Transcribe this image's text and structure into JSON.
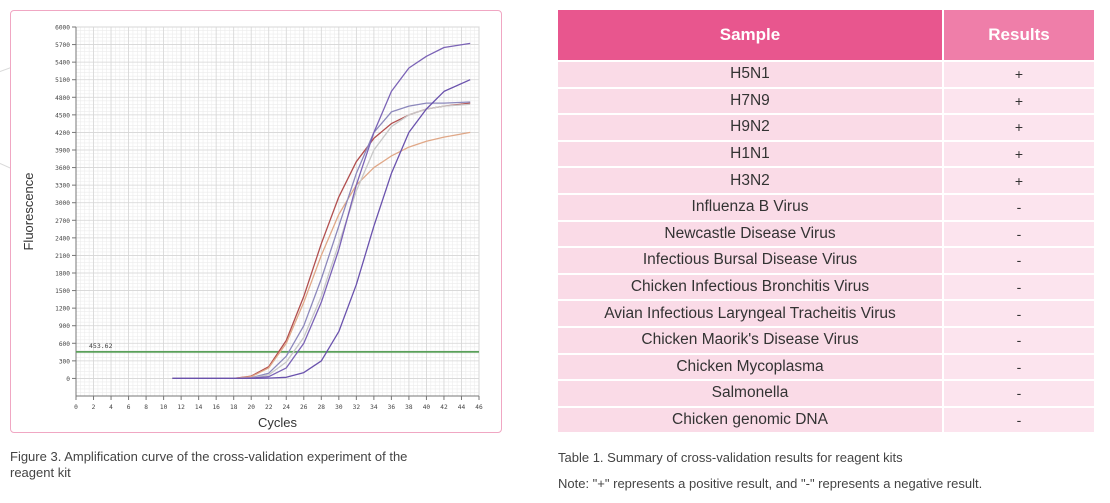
{
  "figure": {
    "caption": "Figure 3. Amplification curve of the cross-validation experiment of the reagent kit"
  },
  "chart_data": {
    "type": "line",
    "title": "",
    "xlabel": "Cycles",
    "ylabel": "Fluorescence",
    "xlim": [
      0,
      46
    ],
    "ylim": [
      -300,
      6000
    ],
    "x_ticks": [
      0,
      2,
      4,
      6,
      8,
      10,
      12,
      14,
      16,
      18,
      20,
      22,
      24,
      26,
      28,
      30,
      32,
      34,
      36,
      38,
      40,
      42,
      44,
      46
    ],
    "y_ticks": [
      0,
      300,
      600,
      900,
      1200,
      1500,
      1800,
      2100,
      2400,
      2700,
      3000,
      3300,
      3600,
      3900,
      4200,
      4500,
      4800,
      5100,
      5400,
      5700,
      6000
    ],
    "y_tick_labels": [
      "0",
      "300",
      "600",
      "900",
      "1200",
      "1500",
      "1800",
      "2100",
      "2400",
      "2700",
      "3000",
      "3300",
      "3600",
      "3900",
      "4200",
      "4500",
      "4800",
      "5100",
      "5400",
      "5700",
      "6000"
    ],
    "grid": true,
    "threshold": {
      "value": 453.62,
      "label": "453.62",
      "color": "#5aa05a"
    },
    "series": [
      {
        "color": "#b14e4e",
        "x": [
          18,
          20,
          22,
          24,
          26,
          28,
          30,
          32,
          34,
          36,
          38,
          40,
          42,
          45
        ],
        "values": [
          0,
          40,
          200,
          650,
          1400,
          2300,
          3100,
          3700,
          4100,
          4350,
          4500,
          4600,
          4650,
          4700
        ]
      },
      {
        "color": "#e0a888",
        "x": [
          18,
          20,
          22,
          24,
          26,
          28,
          30,
          32,
          34,
          36,
          38,
          40,
          42,
          45
        ],
        "values": [
          0,
          30,
          180,
          600,
          1300,
          2100,
          2800,
          3300,
          3600,
          3800,
          3950,
          4050,
          4120,
          4200
        ]
      },
      {
        "color": "#8c88bc",
        "x": [
          18,
          20,
          22,
          24,
          26,
          28,
          30,
          32,
          34,
          36,
          38,
          40,
          42,
          45
        ],
        "values": [
          0,
          10,
          90,
          380,
          900,
          1700,
          2600,
          3500,
          4200,
          4550,
          4650,
          4700,
          4700,
          4720
        ]
      },
      {
        "color": "#c8c8c8",
        "x": [
          18,
          20,
          22,
          24,
          26,
          28,
          30,
          32,
          34,
          36,
          38,
          40,
          42,
          45
        ],
        "values": [
          0,
          5,
          60,
          280,
          700,
          1400,
          2300,
          3200,
          3900,
          4300,
          4500,
          4600,
          4650,
          4680
        ]
      },
      {
        "color": "#7b63b6",
        "x": [
          18,
          20,
          22,
          24,
          26,
          28,
          30,
          32,
          34,
          36,
          38,
          40,
          42,
          45
        ],
        "values": [
          0,
          5,
          30,
          180,
          600,
          1300,
          2200,
          3300,
          4200,
          4900,
          5300,
          5500,
          5650,
          5720
        ]
      },
      {
        "color": "#6a52ad",
        "x": [
          18,
          20,
          22,
          24,
          26,
          28,
          30,
          32,
          34,
          36,
          38,
          40,
          42,
          45
        ],
        "values": [
          0,
          0,
          5,
          20,
          100,
          300,
          800,
          1600,
          2600,
          3500,
          4200,
          4600,
          4900,
          5100
        ]
      }
    ]
  },
  "table": {
    "header": {
      "sample": "Sample",
      "results": "Results"
    },
    "rows": [
      {
        "sample": "H5N1",
        "result": "+"
      },
      {
        "sample": "H7N9",
        "result": "+"
      },
      {
        "sample": "H9N2",
        "result": "+"
      },
      {
        "sample": "H1N1",
        "result": "+"
      },
      {
        "sample": "H3N2",
        "result": "+"
      },
      {
        "sample": "Influenza B Virus",
        "result": "-"
      },
      {
        "sample": "Newcastle Disease Virus",
        "result": "-"
      },
      {
        "sample": "Infectious Bursal Disease Virus",
        "result": "-"
      },
      {
        "sample": "Chicken Infectious Bronchitis Virus",
        "result": "-"
      },
      {
        "sample": "Avian Infectious Laryngeal Tracheitis Virus",
        "result": "-"
      },
      {
        "sample": "Chicken Maorik's Disease Virus",
        "result": "-"
      },
      {
        "sample": "Chicken Mycoplasma",
        "result": "-"
      },
      {
        "sample": "Salmonella",
        "result": "-"
      },
      {
        "sample": "Chicken genomic DNA",
        "result": "-"
      }
    ],
    "caption": "Table 1. Summary of cross-validation results for reagent kits",
    "note": "Note: \"+\" represents a positive result, and \"-\" represents a negative result."
  }
}
